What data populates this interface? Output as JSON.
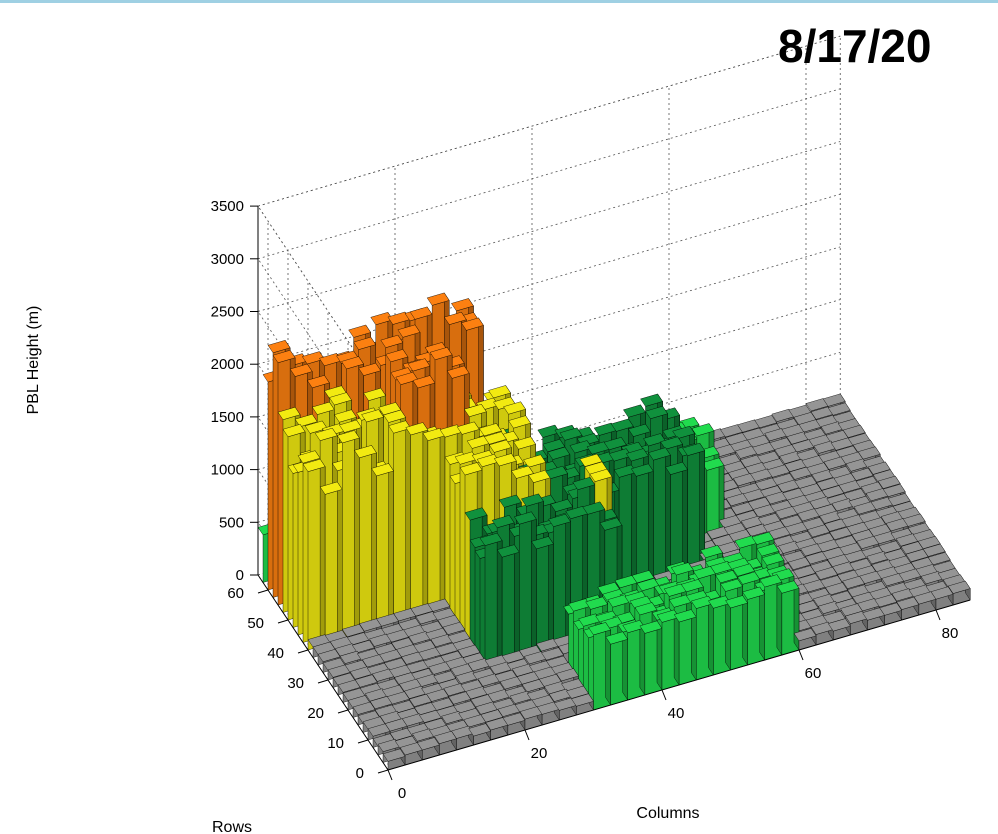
{
  "chart_data": {
    "type": "bar3d",
    "title": "8/17/20",
    "xlabel": "Columns",
    "ylabel": "Rows",
    "zlabel": "PBL Height (m)",
    "xticks": [
      "0",
      "20",
      "40",
      "60",
      "80"
    ],
    "yticks": [
      "0",
      "10",
      "20",
      "30",
      "40",
      "50",
      "60"
    ],
    "zticks": [
      "0",
      "500",
      "1000",
      "1500",
      "2000",
      "2500",
      "3000",
      "3500"
    ],
    "xlim": [
      0,
      85
    ],
    "ylim": [
      0,
      65
    ],
    "zlim": [
      0,
      3500
    ],
    "grid": true,
    "color_bands": [
      {
        "range": [
          0,
          300
        ],
        "color": "#8e8e8e"
      },
      {
        "range": [
          300,
          900
        ],
        "color": "#1fd14a"
      },
      {
        "range": [
          900,
          1300
        ],
        "color": "#0f8a3a"
      },
      {
        "range": [
          1300,
          1900
        ],
        "color": "#e6df10"
      },
      {
        "range": [
          1900,
          2500
        ],
        "color": "#f07a10"
      }
    ],
    "regions": [
      {
        "columns": [
          0,
          30
        ],
        "rows": [
          55,
          62
        ],
        "height": 2200
      },
      {
        "columns": [
          14,
          24
        ],
        "rows": [
          43,
          60
        ],
        "height": 2100
      },
      {
        "columns": [
          0,
          22
        ],
        "rows": [
          38,
          55
        ],
        "height": 1700
      },
      {
        "columns": [
          18,
          32
        ],
        "rows": [
          30,
          55
        ],
        "height": 1500
      },
      {
        "columns": [
          20,
          40
        ],
        "rows": [
          20,
          45
        ],
        "height": 1200
      },
      {
        "columns": [
          40,
          54
        ],
        "rows": [
          30,
          44
        ],
        "height": 1200
      },
      {
        "columns": [
          38,
          58
        ],
        "rows": [
          36,
          52
        ],
        "height": 800
      },
      {
        "columns": [
          30,
          60
        ],
        "rows": [
          0,
          15
        ],
        "height": 650
      },
      {
        "columns": [
          0,
          10
        ],
        "rows": [
          55,
          63
        ],
        "height": 500
      },
      {
        "columns": [
          0,
          85
        ],
        "rows": [
          0,
          65
        ],
        "height": 100
      }
    ]
  }
}
